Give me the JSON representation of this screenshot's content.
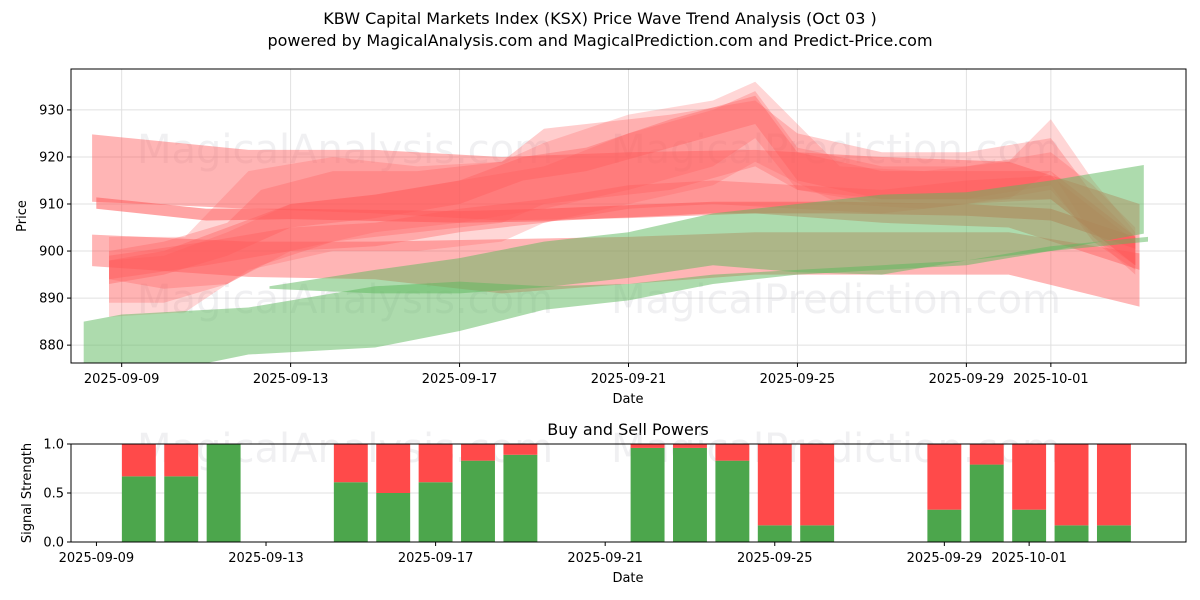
{
  "header": {
    "title": "KBW Capital Markets Index (KSX) Price Wave Trend Analysis (Oct 03 )",
    "subtitle": "powered by MagicalAnalysis.com and MagicalPrediction.com and Predict-Price.com"
  },
  "watermarks": [
    "MagicalAnalysis.com",
    "MagicalPrediction.com"
  ],
  "colors": {
    "buy": "#4ca64c",
    "sell": "#ff4a4a",
    "red_band": "#ff5a5a",
    "green_band": "#5cb85c"
  },
  "chart_data": [
    {
      "type": "area",
      "title": "",
      "xlabel": "Date",
      "ylabel": "Price",
      "ylim": [
        876.2,
        938.7
      ],
      "yticks": [
        880,
        890,
        900,
        910,
        920,
        930
      ],
      "ytick_labels": [
        "880",
        "890",
        "900",
        "910",
        "920",
        "930"
      ],
      "x_origin_date": "2025-09-09",
      "xlim_days": [
        -1.2,
        25.2
      ],
      "xticks_days": [
        0,
        4,
        8,
        12,
        16,
        20,
        22
      ],
      "xtick_labels": [
        "2025-09-09",
        "2025-09-13",
        "2025-09-17",
        "2025-09-21",
        "2025-09-25",
        "2025-09-29",
        "2025-10-01"
      ],
      "grid": true,
      "series": [
        {
          "name": "red-band-wide-top",
          "color": "red",
          "opacity": 0.45,
          "x": [
            -0.7,
            3,
            6,
            9,
            12,
            15,
            18,
            21,
            24.1
          ],
          "upper": [
            924.8,
            921.5,
            921.5,
            920,
            921,
            921.5,
            920,
            919,
            910
          ],
          "lower": [
            910.5,
            909,
            908,
            906.5,
            907,
            908,
            906,
            905,
            896
          ]
        },
        {
          "name": "red-band-wide-bottom",
          "color": "red",
          "opacity": 0.45,
          "x": [
            -0.7,
            3,
            6,
            9,
            12,
            15,
            18,
            21,
            24.1
          ],
          "upper": [
            903.5,
            902,
            902,
            902.5,
            903,
            904,
            904,
            904,
            899.5
          ],
          "lower": [
            896.8,
            894.5,
            894,
            891,
            893,
            895,
            895,
            895,
            888.2
          ]
        },
        {
          "name": "red-line-flat",
          "color": "red",
          "opacity": 0.55,
          "x": [
            -0.6,
            2,
            4,
            8,
            10,
            14,
            17,
            20,
            22,
            24
          ],
          "upper": [
            911.4,
            909,
            909,
            908.5,
            909,
            910.5,
            910.5,
            910,
            909,
            903
          ],
          "lower": [
            909,
            906.5,
            906.8,
            906,
            906.3,
            908,
            908,
            907.5,
            906.5,
            900.5
          ]
        },
        {
          "name": "red-wave-rise-1",
          "color": "red",
          "opacity": 0.3,
          "x": [
            -0.3,
            1,
            2.5,
            3.3,
            5,
            7,
            9,
            10,
            13,
            15,
            16,
            18,
            20,
            22,
            23,
            24
          ],
          "upper": [
            900,
            902,
            906,
            913,
            917,
            917,
            919,
            926,
            929,
            932,
            925,
            921,
            921,
            924,
            912,
            903
          ],
          "lower": [
            894,
            892,
            893,
            897,
            902,
            904,
            906,
            910,
            913,
            918,
            913,
            911,
            911,
            914,
            902,
            896
          ]
        },
        {
          "name": "red-wave-rise-2",
          "color": "red",
          "opacity": 0.28,
          "x": [
            -0.3,
            1,
            2.5,
            4,
            6,
            8,
            10,
            12,
            14,
            15,
            16,
            18,
            20,
            22,
            23,
            24
          ],
          "upper": [
            898,
            899,
            904,
            910,
            912,
            915,
            918,
            925,
            930,
            934,
            922,
            918,
            918,
            921,
            914,
            905
          ],
          "lower": [
            889,
            889,
            893,
            900,
            904,
            906,
            909,
            913,
            918,
            924,
            913,
            910,
            910,
            913,
            903,
            895
          ]
        },
        {
          "name": "red-wave-rise-3",
          "color": "red",
          "opacity": 0.25,
          "x": [
            -0.3,
            1.5,
            3,
            5,
            7,
            9,
            10,
            12,
            14,
            15,
            17,
            19,
            21,
            22,
            23,
            24
          ],
          "upper": [
            903,
            903,
            917,
            920,
            918,
            919,
            923,
            929,
            932,
            936,
            918,
            917,
            919,
            928,
            915,
            904
          ],
          "lower": [
            886,
            887,
            896,
            900,
            900,
            902,
            906,
            910,
            914,
            919,
            910,
            909,
            911,
            917,
            903,
            897
          ]
        },
        {
          "name": "red-wave-core",
          "color": "red",
          "opacity": 0.35,
          "x": [
            -0.3,
            1,
            2.5,
            4,
            6,
            8,
            9.5,
            11,
            13,
            15,
            16,
            18,
            20,
            22,
            24
          ],
          "upper": [
            898,
            900,
            905,
            910,
            912,
            915,
            920,
            922,
            928,
            933,
            921,
            917,
            917,
            917,
            903
          ],
          "lower": [
            893,
            895,
            899,
            905,
            907,
            910,
            915,
            917,
            922,
            927,
            915,
            911,
            911,
            911,
            897
          ]
        },
        {
          "name": "red-wave-mid",
          "color": "red",
          "opacity": 0.35,
          "x": [
            -0.3,
            2,
            4,
            6,
            8,
            10,
            12,
            14,
            16,
            18,
            20,
            22,
            24
          ],
          "upper": [
            899,
            902,
            905,
            906,
            909,
            911,
            914,
            915,
            914,
            913,
            915,
            916,
            902
          ],
          "lower": [
            894,
            897,
            900,
            901,
            904,
            906,
            909,
            910,
            909,
            908,
            910,
            911,
            897
          ]
        },
        {
          "name": "green-band-lower",
          "color": "green",
          "opacity": 0.5,
          "x": [
            -0.9,
            0,
            3,
            6,
            8,
            10,
            12,
            14,
            16,
            18,
            20,
            22,
            24.3
          ],
          "upper": [
            885,
            886.5,
            888,
            892.5,
            893.5,
            892.5,
            893,
            895,
            896,
            897,
            898,
            901,
            903
          ],
          "lower": [
            876,
            872.5,
            878,
            879.5,
            883,
            887.5,
            889.5,
            893,
            895,
            896,
            897,
            900,
            902
          ]
        },
        {
          "name": "green-band-upper",
          "color": "green",
          "opacity": 0.5,
          "x": [
            3.5,
            6,
            8,
            10,
            12,
            14,
            16,
            18,
            20,
            22,
            24.2
          ],
          "upper": [
            892.5,
            896,
            898.5,
            902,
            904,
            908,
            910,
            912,
            912.5,
            915,
            918.3
          ],
          "lower": [
            892,
            891,
            891,
            892.3,
            894.3,
            897,
            895.5,
            895,
            898,
            900,
            903.7
          ]
        }
      ]
    },
    {
      "type": "bar",
      "title": "Buy and Sell Powers",
      "xlabel": "Date",
      "ylabel": "Signal Strength",
      "ylim": [
        0,
        1
      ],
      "yticks": [
        0,
        0.5,
        1
      ],
      "ytick_labels": [
        "0.0",
        "0.5",
        "1.0"
      ],
      "x_origin_date": "2025-09-09",
      "xlim_days": [
        -0.6,
        25.7
      ],
      "xticks_days": [
        0,
        4,
        8,
        12,
        16,
        20,
        22
      ],
      "xtick_labels": [
        "2025-09-09",
        "2025-09-13",
        "2025-09-17",
        "2025-09-21",
        "2025-09-25",
        "2025-09-29",
        "2025-10-01"
      ],
      "grid": true,
      "categories": [
        "2025-09-10",
        "2025-09-11",
        "2025-09-12",
        "2025-09-15",
        "2025-09-16",
        "2025-09-17",
        "2025-09-18",
        "2025-09-19",
        "2025-09-22",
        "2025-09-23",
        "2025-09-24",
        "2025-09-25",
        "2025-09-26",
        "2025-09-29",
        "2025-09-30",
        "2025-10-01",
        "2025-10-02",
        "2025-10-03"
      ],
      "category_days": [
        1,
        2,
        3,
        6,
        7,
        8,
        9,
        10,
        13,
        14,
        15,
        16,
        17,
        20,
        21,
        22,
        23,
        24
      ],
      "series": [
        {
          "name": "Buy",
          "values": [
            0.67,
            0.67,
            1.0,
            0.61,
            0.5,
            0.61,
            0.83,
            0.89,
            0.96,
            0.96,
            0.83,
            0.17,
            0.17,
            0.33,
            0.79,
            0.33,
            0.17,
            0.17
          ]
        },
        {
          "name": "Sell",
          "values": [
            0.33,
            0.33,
            0.0,
            0.39,
            0.5,
            0.39,
            0.17,
            0.11,
            0.04,
            0.04,
            0.17,
            0.83,
            0.83,
            0.67,
            0.21,
            0.67,
            0.83,
            0.83
          ]
        }
      ]
    }
  ]
}
